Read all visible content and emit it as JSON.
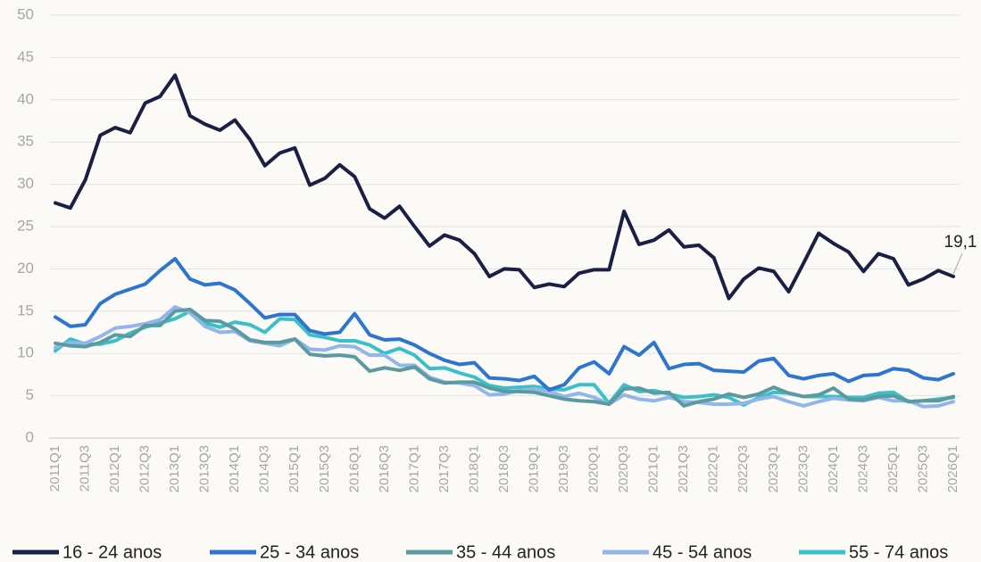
{
  "chart_data": {
    "type": "line",
    "categories": [
      "2011Q1",
      null,
      "2011Q3",
      null,
      "2012Q1",
      null,
      "2012Q3",
      null,
      "2013Q1",
      null,
      "2013Q3",
      null,
      "2014Q1",
      null,
      "2014Q3",
      null,
      "2015Q1",
      null,
      "2015Q3",
      null,
      "2016Q1",
      null,
      "2016Q3",
      null,
      "2017Q1",
      null,
      "2017Q3",
      null,
      "2018Q1",
      null,
      "2018Q3",
      null,
      "2019Q1",
      null,
      "2019Q3",
      null,
      "2020Q1",
      null,
      "2020Q3",
      null,
      "2021Q1",
      null,
      "2021Q3",
      null,
      "2022Q1",
      null,
      "2022Q3",
      null,
      "2023Q1",
      null,
      "2023Q3",
      null,
      "2024Q1",
      null,
      "2024Q3",
      null,
      "2025Q1",
      null,
      "2025Q3",
      null,
      "2026Q1"
    ],
    "series": [
      {
        "name": "16 - 24 anos",
        "color": "#1a1f44",
        "values": [
          27.8,
          27.2,
          30.5,
          35.8,
          36.7,
          36.1,
          39.6,
          40.4,
          42.9,
          38.1,
          37.1,
          36.4,
          37.6,
          35.3,
          32.2,
          33.7,
          34.3,
          29.9,
          30.7,
          32.3,
          30.9,
          27.1,
          26.0,
          27.4,
          25.0,
          22.7,
          24.0,
          23.4,
          21.8,
          19.1,
          20.0,
          19.9,
          17.8,
          18.2,
          17.9,
          19.5,
          19.9,
          19.9,
          26.8,
          22.9,
          23.4,
          24.6,
          22.6,
          22.8,
          21.3,
          16.5,
          18.8,
          20.1,
          19.7,
          17.3,
          20.7,
          24.2,
          23.0,
          22.0,
          19.7,
          21.8,
          21.2,
          18.1,
          18.8,
          19.8,
          19.1
        ],
        "value_labels": [
          null,
          null,
          null,
          null,
          null,
          null,
          null,
          null,
          null,
          null,
          null,
          null,
          null,
          null,
          null,
          null,
          null,
          null,
          null,
          null,
          null,
          null,
          null,
          null,
          null,
          null,
          null,
          null,
          null,
          null,
          null,
          null,
          null,
          null,
          null,
          null,
          null,
          null,
          null,
          null,
          null,
          null,
          null,
          null,
          null,
          null,
          null,
          null,
          null,
          null,
          null,
          null,
          null,
          null,
          null,
          null,
          null,
          null,
          null,
          null,
          "19,1"
        ]
      },
      {
        "name": "25 - 34 anos",
        "color": "#2e75d0",
        "values": [
          14.3,
          13.2,
          13.4,
          15.9,
          17.0,
          17.6,
          18.2,
          19.8,
          21.2,
          18.8,
          18.1,
          18.3,
          17.5,
          15.9,
          14.2,
          14.6,
          14.6,
          12.7,
          12.3,
          12.5,
          14.7,
          12.2,
          11.6,
          11.7,
          11.0,
          10.0,
          9.2,
          8.7,
          8.9,
          7.1,
          7.0,
          6.8,
          7.3,
          5.7,
          6.3,
          8.3,
          9.0,
          7.6,
          10.8,
          9.8,
          11.3,
          8.2,
          8.7,
          8.8,
          8.0,
          7.9,
          7.8,
          9.1,
          9.4,
          7.4,
          7.0,
          7.4,
          7.6,
          6.7,
          7.4,
          7.5,
          8.2,
          8.0,
          7.1,
          6.9,
          7.6
        ]
      },
      {
        "name": "35 - 44 anos",
        "color": "#5b9aa0",
        "values": [
          11.2,
          10.9,
          10.8,
          11.3,
          12.2,
          12.0,
          13.3,
          13.3,
          15.0,
          15.2,
          13.9,
          13.8,
          12.9,
          11.6,
          11.3,
          11.3,
          11.7,
          9.9,
          9.7,
          9.8,
          9.6,
          7.9,
          8.3,
          8.0,
          8.4,
          7.0,
          6.5,
          6.6,
          6.6,
          5.9,
          5.5,
          5.5,
          5.4,
          5.0,
          4.6,
          4.4,
          4.3,
          4.0,
          5.8,
          5.9,
          5.3,
          5.4,
          3.8,
          4.3,
          4.6,
          5.2,
          4.8,
          5.2,
          6.0,
          5.3,
          4.9,
          5.1,
          5.9,
          4.6,
          4.5,
          4.9,
          5.0,
          4.3,
          4.4,
          4.4,
          4.9
        ]
      },
      {
        "name": "45 - 54 anos",
        "color": "#93b6e8",
        "values": [
          10.7,
          11.3,
          11.2,
          12.0,
          13.0,
          13.2,
          13.5,
          14.0,
          15.5,
          14.8,
          13.2,
          12.5,
          12.6,
          11.5,
          11.2,
          10.9,
          11.7,
          10.5,
          10.4,
          10.9,
          10.8,
          9.8,
          9.8,
          8.6,
          8.6,
          7.2,
          6.6,
          6.5,
          6.2,
          5.1,
          5.2,
          5.6,
          5.8,
          5.5,
          4.9,
          5.3,
          4.8,
          4.0,
          5.1,
          4.6,
          4.4,
          4.8,
          4.3,
          4.2,
          4.0,
          4.0,
          4.1,
          4.6,
          4.9,
          4.3,
          3.8,
          4.3,
          4.7,
          4.5,
          4.4,
          4.8,
          4.4,
          4.4,
          3.7,
          3.8,
          4.3
        ]
      },
      {
        "name": "55 - 74 anos",
        "color": "#3bbfc8",
        "values": [
          10.3,
          11.7,
          11.1,
          11.1,
          11.5,
          12.4,
          13.1,
          13.6,
          14.1,
          15.0,
          13.6,
          13.1,
          13.7,
          13.4,
          12.5,
          14.1,
          14.0,
          12.2,
          11.9,
          11.5,
          11.5,
          11.0,
          10.0,
          10.6,
          9.8,
          8.2,
          8.3,
          7.7,
          7.2,
          6.2,
          5.9,
          6.0,
          6.1,
          5.8,
          5.7,
          6.3,
          6.3,
          4.1,
          6.3,
          5.5,
          5.6,
          5.2,
          4.8,
          4.9,
          5.1,
          4.8,
          3.9,
          4.8,
          5.4,
          5.3,
          4.9,
          4.9,
          4.9,
          4.8,
          4.8,
          5.3,
          5.4,
          4.3,
          4.4,
          4.6,
          4.8
        ]
      }
    ],
    "ylim": [
      0,
      50
    ],
    "yticks": [
      0,
      5,
      10,
      15,
      20,
      25,
      30,
      35,
      40,
      45,
      50
    ],
    "grid": true,
    "legend": "bottom"
  }
}
